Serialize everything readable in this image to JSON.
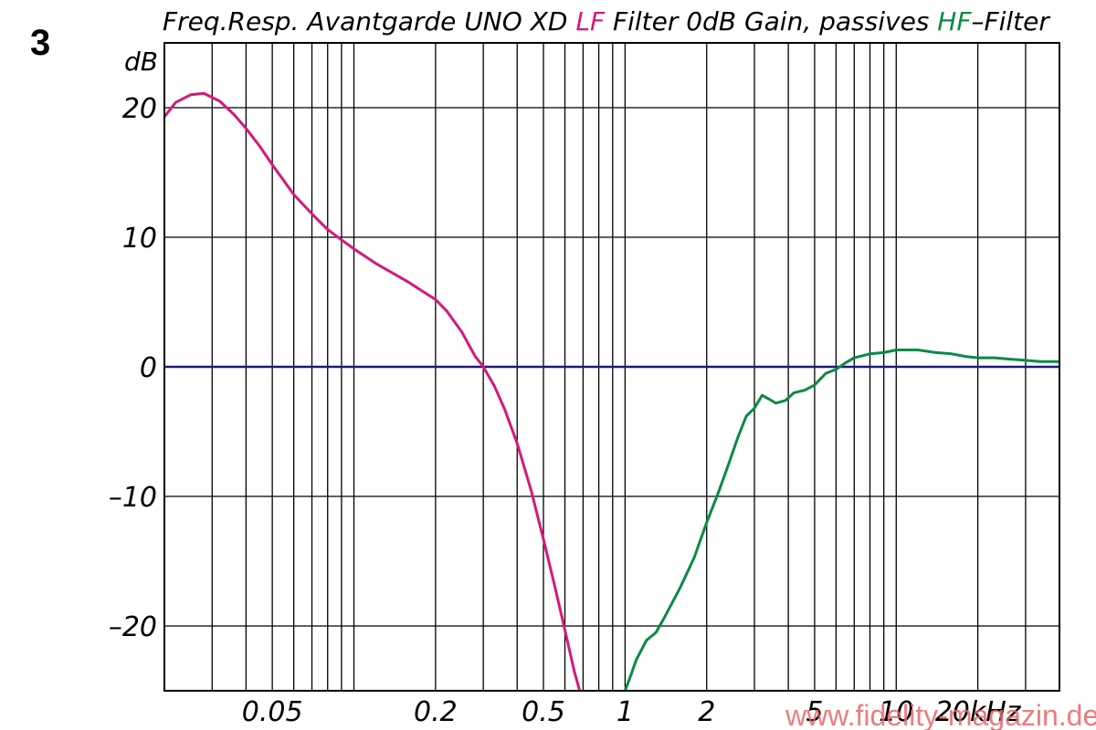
{
  "figure_number": "3",
  "chart_data": {
    "type": "line",
    "title_parts": [
      {
        "text": "Freq.Resp. Avantgarde UNO XD ",
        "color": "#000000"
      },
      {
        "text": "LF",
        "color": "#d4197a"
      },
      {
        "text": " Filter 0dB Gain,  passives ",
        "color": "#000000"
      },
      {
        "text": "HF",
        "color": "#0b8a43"
      },
      {
        "text": "–Filter",
        "color": "#000000"
      }
    ],
    "ylabel": "dB",
    "xunit": "kHz",
    "xscale": "log",
    "xlim": [
      0.02,
      40
    ],
    "ylim": [
      -25,
      25
    ],
    "grid": true,
    "x_gridlines": [
      0.03,
      0.04,
      0.05,
      0.06,
      0.07,
      0.08,
      0.09,
      0.1,
      0.2,
      0.3,
      0.4,
      0.5,
      0.6,
      0.7,
      0.8,
      0.9,
      1,
      2,
      3,
      4,
      5,
      6,
      7,
      8,
      9,
      10,
      20,
      30
    ],
    "x_ticks": [
      {
        "value": 0.05,
        "label": "0.05"
      },
      {
        "value": 0.2,
        "label": "0.2"
      },
      {
        "value": 0.5,
        "label": "0.5"
      },
      {
        "value": 1,
        "label": "1"
      },
      {
        "value": 2,
        "label": "2"
      },
      {
        "value": 5,
        "label": "5"
      },
      {
        "value": 10,
        "label": "10"
      },
      {
        "value": 20,
        "label": "20kHz"
      }
    ],
    "y_ticks": [
      {
        "value": 20,
        "label": "20"
      },
      {
        "value": 10,
        "label": "10"
      },
      {
        "value": 0,
        "label": "0"
      },
      {
        "value": -10,
        "label": "–10"
      },
      {
        "value": -20,
        "label": "–20"
      }
    ],
    "y_gridlines": [
      20,
      10,
      0,
      -10,
      -20
    ],
    "reference_line": {
      "y": 0,
      "color": "#1a1a7a"
    },
    "series": [
      {
        "name": "LF",
        "color": "#d4197a",
        "points": [
          [
            0.02,
            19.3
          ],
          [
            0.022,
            20.4
          ],
          [
            0.025,
            21.0
          ],
          [
            0.028,
            21.1
          ],
          [
            0.032,
            20.5
          ],
          [
            0.036,
            19.5
          ],
          [
            0.04,
            18.4
          ],
          [
            0.045,
            17.0
          ],
          [
            0.05,
            15.6
          ],
          [
            0.055,
            14.4
          ],
          [
            0.06,
            13.3
          ],
          [
            0.07,
            11.8
          ],
          [
            0.08,
            10.6
          ],
          [
            0.09,
            9.8
          ],
          [
            0.1,
            9.1
          ],
          [
            0.12,
            8.0
          ],
          [
            0.14,
            7.2
          ],
          [
            0.16,
            6.5
          ],
          [
            0.18,
            5.8
          ],
          [
            0.2,
            5.2
          ],
          [
            0.22,
            4.3
          ],
          [
            0.25,
            2.7
          ],
          [
            0.28,
            0.8
          ],
          [
            0.3,
            0.0
          ],
          [
            0.33,
            -1.5
          ],
          [
            0.36,
            -3.3
          ],
          [
            0.4,
            -5.9
          ],
          [
            0.45,
            -9.5
          ],
          [
            0.5,
            -13.3
          ],
          [
            0.55,
            -16.9
          ],
          [
            0.6,
            -20.3
          ],
          [
            0.65,
            -23.5
          ],
          [
            0.68,
            -25.0
          ]
        ]
      },
      {
        "name": "HF",
        "color": "#0b8a43",
        "points": [
          [
            1.0,
            -25.0
          ],
          [
            1.05,
            -23.8
          ],
          [
            1.1,
            -22.6
          ],
          [
            1.2,
            -21.1
          ],
          [
            1.3,
            -20.5
          ],
          [
            1.4,
            -19.3
          ],
          [
            1.6,
            -17.0
          ],
          [
            1.8,
            -14.7
          ],
          [
            2.0,
            -12.0
          ],
          [
            2.2,
            -9.8
          ],
          [
            2.4,
            -7.6
          ],
          [
            2.6,
            -5.5
          ],
          [
            2.8,
            -3.8
          ],
          [
            3.0,
            -3.2
          ],
          [
            3.2,
            -2.2
          ],
          [
            3.4,
            -2.5
          ],
          [
            3.6,
            -2.8
          ],
          [
            3.9,
            -2.6
          ],
          [
            4.2,
            -2.0
          ],
          [
            4.6,
            -1.8
          ],
          [
            5.0,
            -1.4
          ],
          [
            5.5,
            -0.5
          ],
          [
            6.0,
            -0.2
          ],
          [
            6.5,
            0.3
          ],
          [
            7.0,
            0.7
          ],
          [
            8.0,
            1.0
          ],
          [
            9.0,
            1.1
          ],
          [
            10.0,
            1.3
          ],
          [
            12.0,
            1.3
          ],
          [
            14.0,
            1.1
          ],
          [
            16.0,
            1.0
          ],
          [
            18.0,
            0.8
          ],
          [
            20.0,
            0.7
          ],
          [
            23.0,
            0.7
          ],
          [
            26.0,
            0.6
          ],
          [
            30.0,
            0.5
          ],
          [
            34.0,
            0.4
          ],
          [
            40.0,
            0.4
          ]
        ]
      }
    ]
  },
  "watermark": "www.fidelity-magazin.de"
}
